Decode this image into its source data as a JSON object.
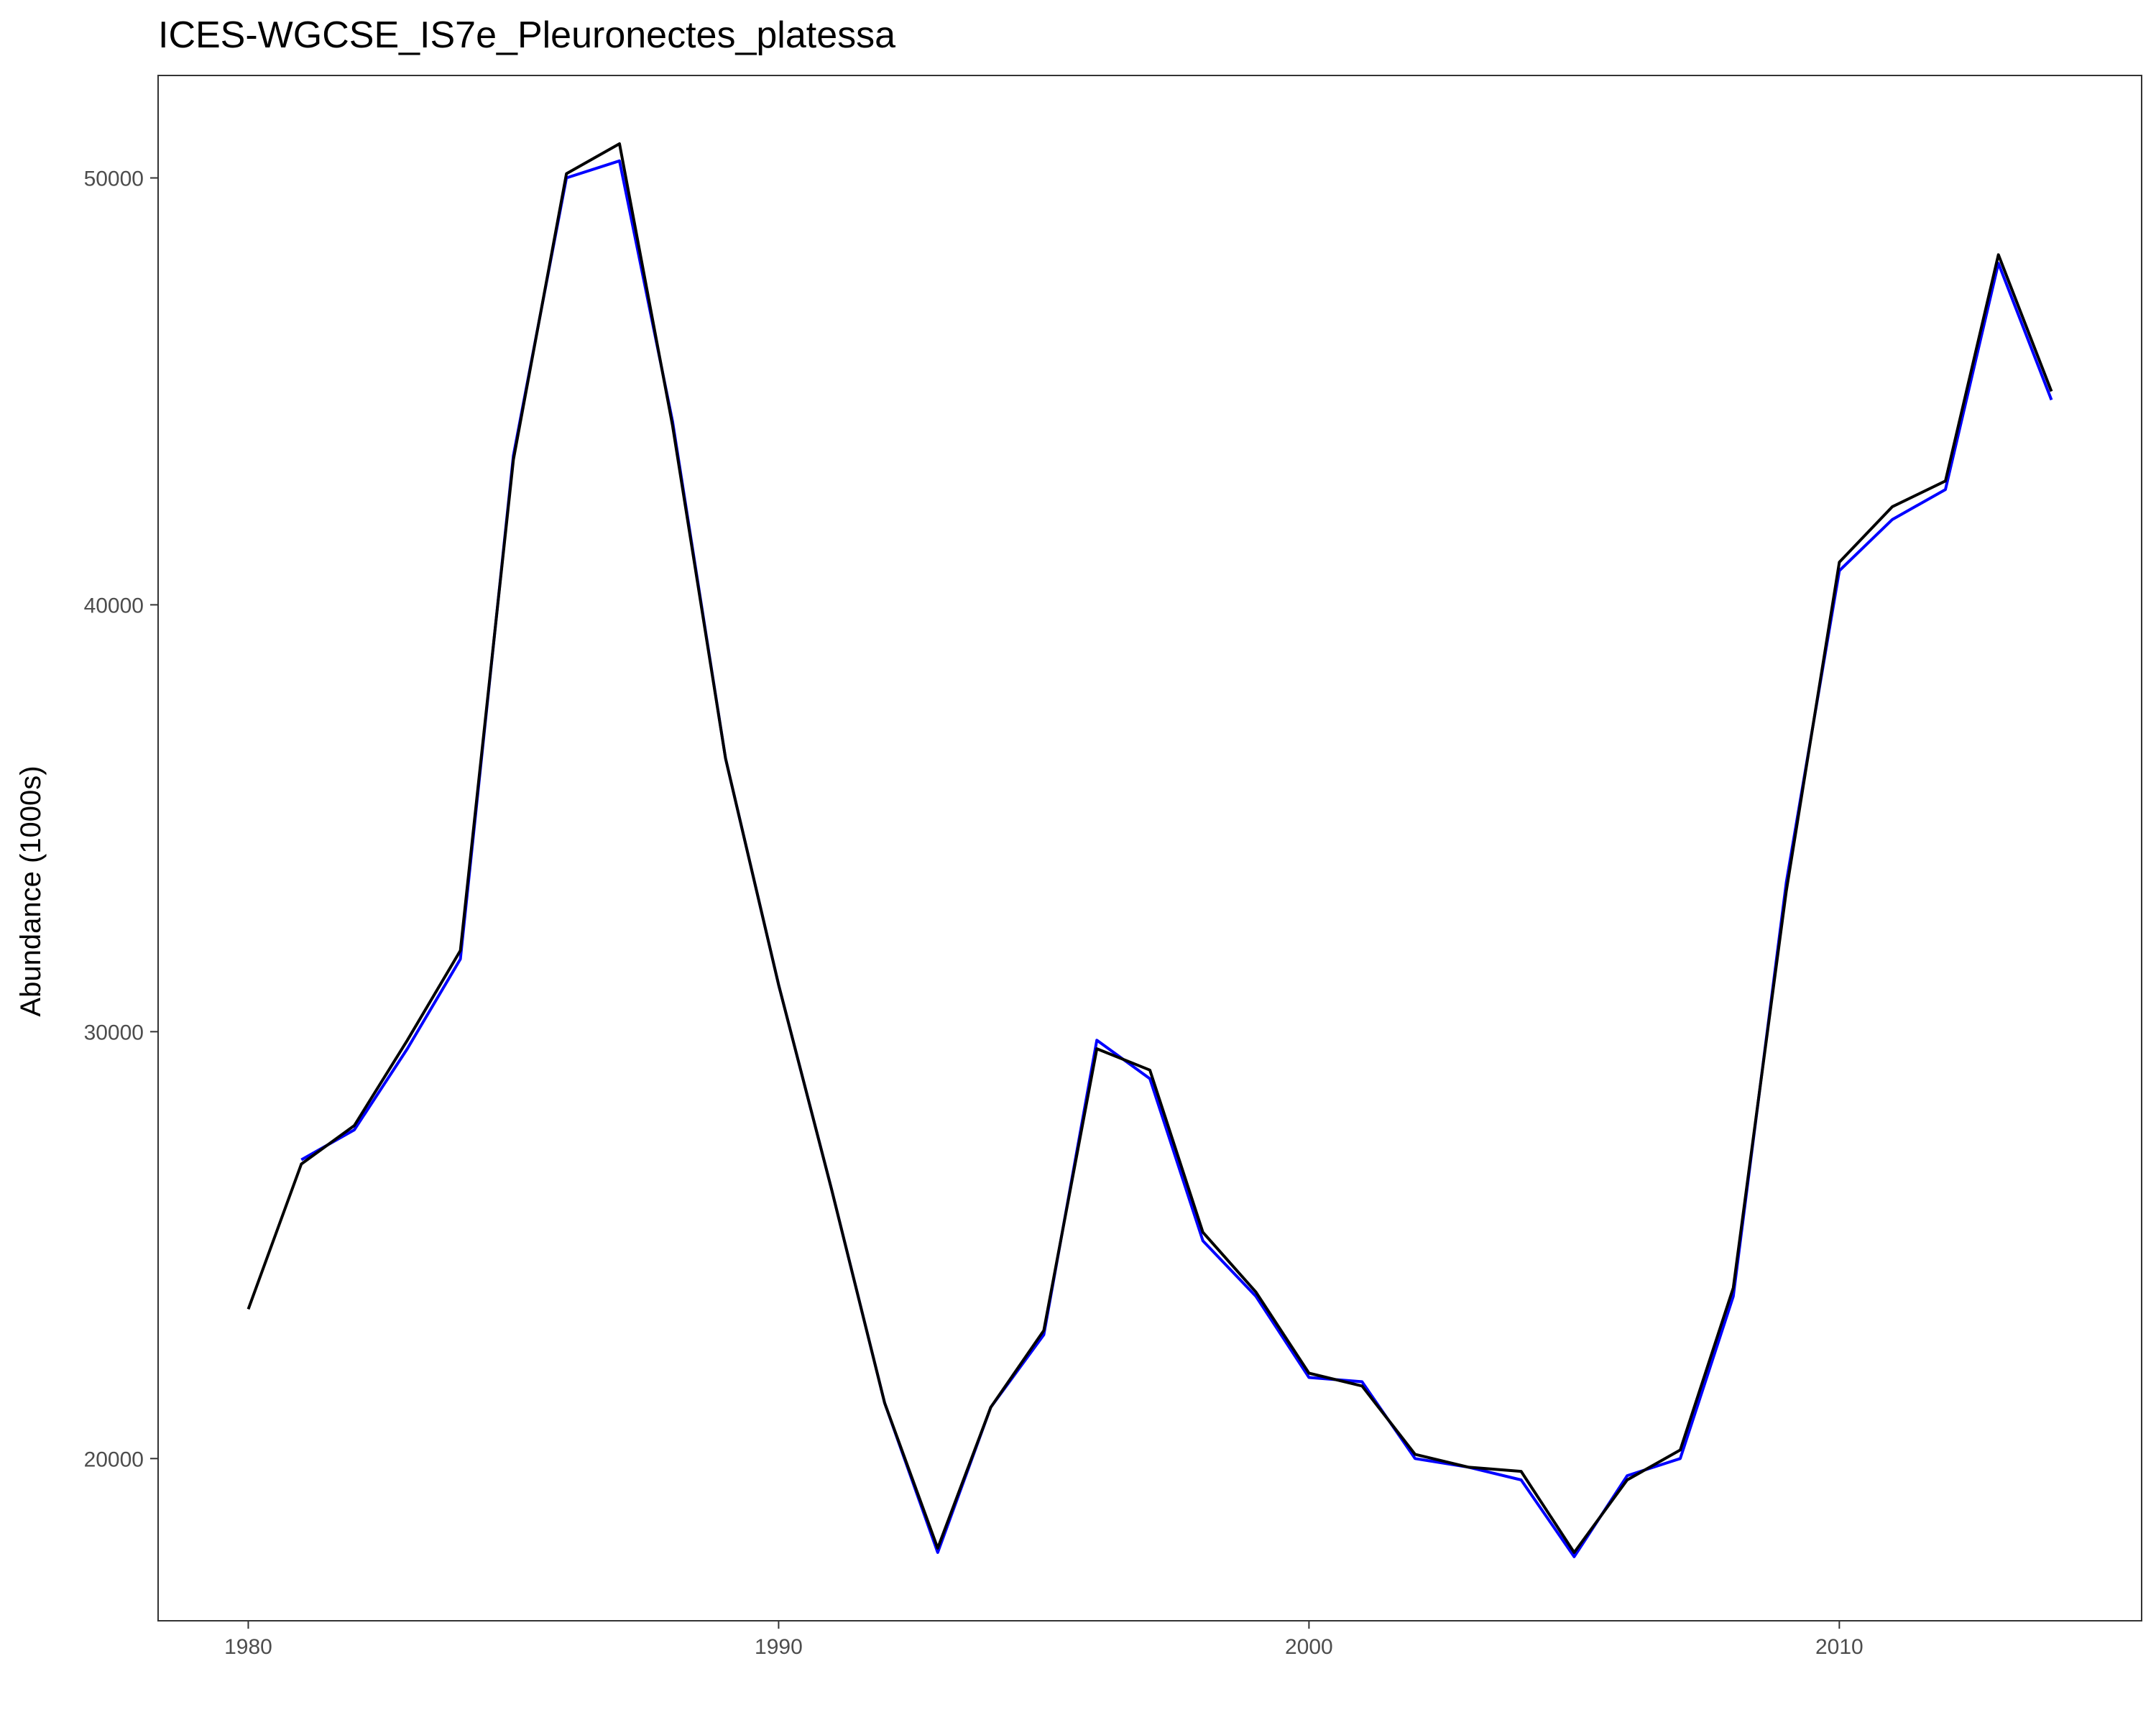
{
  "chart_data": {
    "type": "line",
    "title": "ICES-WGCSE_IS7e_Pleuronectes_platessa",
    "xlabel": "",
    "ylabel": "Abundance (1000s)",
    "xlim": [
      1978.3,
      2015.7
    ],
    "ylim": [
      16200,
      52400
    ],
    "x_ticks": [
      1980,
      1990,
      2000,
      2010
    ],
    "y_ticks": [
      20000,
      30000,
      40000,
      50000
    ],
    "grid": false,
    "legend": "none",
    "series": [
      {
        "color": "#0000ff",
        "x": [
          1981,
          1982,
          1983,
          1984,
          1985,
          1986,
          1987,
          1988,
          1989,
          1990,
          1991,
          1992,
          1993,
          1994,
          1995,
          1996,
          1997,
          1998,
          1999,
          2000,
          2001,
          2002,
          2003,
          2004,
          2005,
          2006,
          2007,
          2008,
          2009,
          2010,
          2011,
          2012,
          2013,
          2014
        ],
        "y": [
          27000,
          27700,
          29600,
          31700,
          43500,
          50000,
          50400,
          44300,
          36400,
          31100,
          26300,
          21300,
          17800,
          21200,
          22900,
          29800,
          28900,
          25100,
          23800,
          21900,
          21800,
          20000,
          19800,
          19500,
          17700,
          19600,
          20000,
          23800,
          33500,
          40800,
          42000,
          42700,
          48000,
          44800
        ]
      },
      {
        "color": "#000000",
        "x": [
          1980,
          1981,
          1982,
          1983,
          1984,
          1985,
          1986,
          1987,
          1988,
          1989,
          1990,
          1991,
          1992,
          1993,
          1994,
          1995,
          1996,
          1997,
          1998,
          1999,
          2000,
          2001,
          2002,
          2003,
          2004,
          2005,
          2006,
          2007,
          2008,
          2009,
          2010,
          2011,
          2012,
          2013,
          2014
        ],
        "y": [
          23500,
          26900,
          27800,
          29800,
          31900,
          43400,
          50100,
          50800,
          44200,
          36400,
          31100,
          26300,
          21300,
          17900,
          21200,
          23000,
          29600,
          29100,
          25300,
          23900,
          22000,
          21700,
          20100,
          19800,
          19700,
          17800,
          19500,
          20200,
          24000,
          33300,
          41000,
          42300,
          42900,
          48200,
          45000
        ]
      }
    ]
  }
}
